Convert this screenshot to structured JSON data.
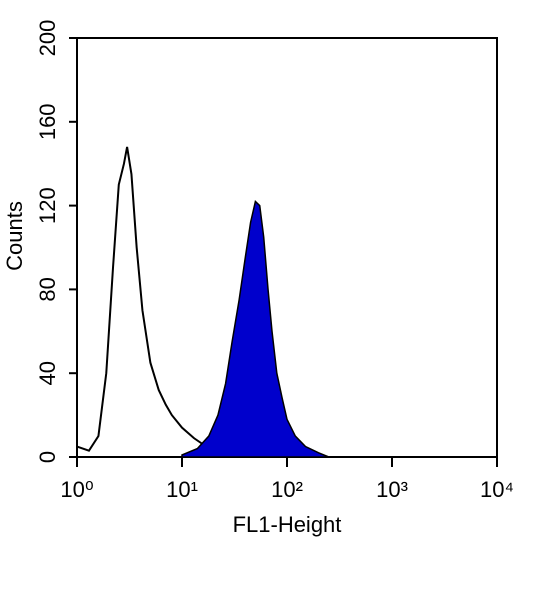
{
  "chart_data": {
    "type": "histogram-overlay",
    "xlabel": "FL1-Height",
    "ylabel": "Counts",
    "log_x": true,
    "xlim": [
      1,
      10000
    ],
    "xticks": [
      {
        "value": 1,
        "label": "10⁰"
      },
      {
        "value": 10,
        "label": "10¹"
      },
      {
        "value": 100,
        "label": "10²"
      },
      {
        "value": 1000,
        "label": "10³"
      },
      {
        "value": 10000,
        "label": "10⁴"
      }
    ],
    "ylim": [
      0,
      200
    ],
    "yticks": [
      0,
      40,
      80,
      120,
      160,
      200
    ],
    "series": [
      {
        "style": "outline",
        "color": "#000000",
        "x": [
          1,
          1.3,
          1.6,
          1.9,
          2.2,
          2.5,
          2.8,
          3.0,
          3.3,
          3.7,
          4.2,
          5,
          6,
          7,
          8,
          10,
          13,
          17,
          22,
          30,
          40,
          60
        ],
        "values": [
          5,
          3,
          10,
          40,
          90,
          130,
          140,
          148,
          135,
          100,
          70,
          45,
          32,
          25,
          20,
          14,
          9,
          5,
          3,
          2,
          1,
          0
        ]
      },
      {
        "style": "filled",
        "color": "#0000cc",
        "x": [
          10,
          14,
          18,
          22,
          26,
          30,
          35,
          40,
          45,
          50,
          55,
          60,
          66,
          72,
          80,
          90,
          100,
          120,
          150,
          200,
          250
        ],
        "values": [
          1,
          4,
          10,
          20,
          35,
          55,
          75,
          95,
          112,
          122,
          120,
          105,
          80,
          60,
          40,
          28,
          18,
          10,
          5,
          2,
          0
        ]
      }
    ]
  }
}
